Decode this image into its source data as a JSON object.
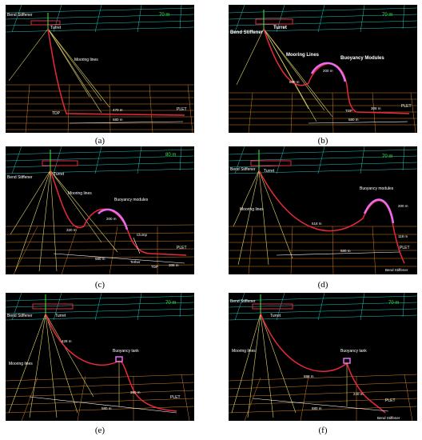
{
  "panels": {
    "a": {
      "caption": "(a)",
      "depth": "70 m",
      "bend": "Bend Stiffener",
      "turret": "Turret",
      "mooring": "Mooring lines",
      "tdp": "TDP",
      "d1": "470 m",
      "d2": "580 m",
      "plet": "PLET"
    },
    "b": {
      "caption": "(b)",
      "depth": "70 m",
      "bend": "Bend Stiffener",
      "turret": "Turret",
      "mooring": "Mooring Lines",
      "buoy": "Buoyancy Modules",
      "len1": "600 m",
      "len2": "200 m",
      "tdp": "TDP",
      "d1": "308 m",
      "d2": "580 m",
      "plet": "PLET"
    },
    "c": {
      "caption": "(c)",
      "depth": "80 m",
      "bend": "Bend Stiffener",
      "turret": "Turret",
      "mooring": "Mooring lines",
      "buoy": "Buoyancy modules",
      "len1": "320 m",
      "len2": "200 m",
      "clump": "Clump",
      "d2": "580 m",
      "tether": "Tether",
      "tdp": "TDP",
      "d1": "308 m",
      "plet": "PLET"
    },
    "d": {
      "caption": "(d)",
      "depth": "70 m",
      "bend": "Bend Stiffener",
      "turret": "Turret",
      "mooring": "Mooring lines",
      "buoy": "Buoyancy modules",
      "len1": "518 m",
      "len2": "200 m",
      "len3": "118 m",
      "d2": "580 m",
      "plet": "PLET",
      "bend2": "Bend Stiffener"
    },
    "e": {
      "caption": "(e)",
      "depth": "70 m",
      "bend": "Bend Stiffener",
      "turret": "Turret",
      "mooring": "Mooring lines",
      "len1": "428 m",
      "buoy": "Buoyancy tank",
      "d1": "350 m",
      "d2": "580 m",
      "plet": "PLET"
    },
    "f": {
      "caption": "(f)",
      "depth": "70 m",
      "bend": "Bend Stiffener",
      "turret": "Turret",
      "mooring": "Mooring lines",
      "len1": "588 m",
      "buoy": "Buoyancy tank",
      "d1": "240 m",
      "d2": "580 m",
      "plet": "PLET",
      "bend2": "Bend Stiffener"
    }
  },
  "colors": {
    "surface_grid": "#27c6c8",
    "seabed_grid": "#d8822a",
    "riser": "#e8283c",
    "mooring": "#e6d96a",
    "buoyancy": "#e86cf0",
    "label": "#ffffff",
    "depth_label": "#3cf03c"
  }
}
